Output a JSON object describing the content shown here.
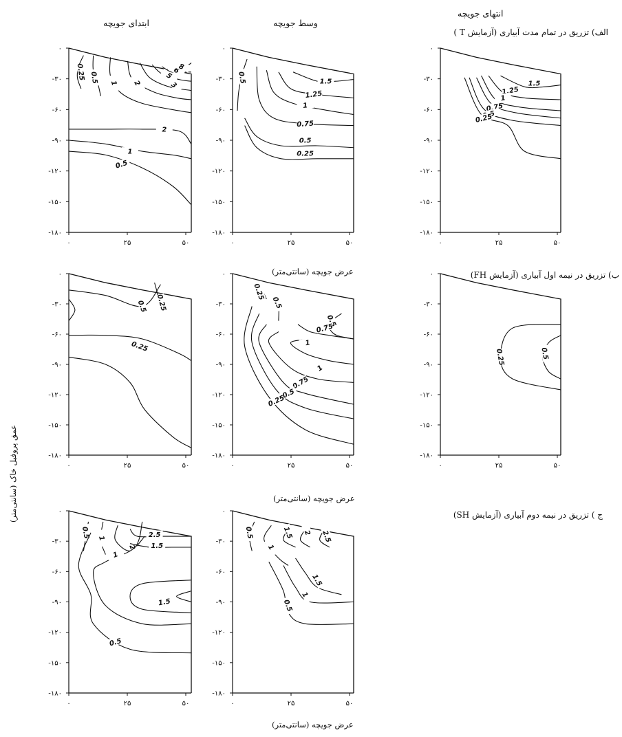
{
  "figure": {
    "column_titles": [
      "ابتدای جویچه",
      "وسط جویچه",
      "انتهای جویچه"
    ],
    "row_titles": [
      "الف) تزریق در تمام مدت آبیاری (آزمایش T )",
      "ب) تزریق در نیمه اول آبیاری (آزمایش FH)",
      "ج ) تزریق در نیمه دوم آبیاری (آزمایش SH)"
    ],
    "x_axis_label": "عرض جویچه (سانتی‌متر)",
    "y_axis_label": "عمق پروفیل خاک (سانتی‌متر)",
    "y_tick_labels": [
      "۰",
      "-۳۰",
      "-۶۰",
      "-۹۰",
      "-۱۲۰",
      "-۱۵۰",
      "-۱۸۰"
    ],
    "x_tick_labels": [
      "۰",
      "۲۵",
      "۵۰"
    ]
  },
  "chart_data": [
    {
      "type": "contour",
      "panel": "T-start",
      "x": [
        0,
        25,
        50
      ],
      "ylim": [
        -180,
        0
      ],
      "xlim": [
        0,
        50
      ],
      "contour_levels": [
        "0.25",
        "0.5",
        "1",
        "2",
        "3",
        "5",
        "6",
        "8",
        "2",
        "1",
        "0.5",
        "0.25"
      ]
    },
    {
      "type": "contour",
      "panel": "T-middle",
      "x": [
        0,
        25,
        50
      ],
      "ylim": [
        -180,
        0
      ],
      "xlim": [
        0,
        50
      ],
      "contour_levels": [
        "0.5",
        "1.5",
        "1.25",
        "1",
        "0.75",
        "0.5",
        "0.25"
      ]
    },
    {
      "type": "contour",
      "panel": "T-end",
      "x": [
        0,
        25,
        50
      ],
      "ylim": [
        -180,
        0
      ],
      "xlim": [
        0,
        50
      ],
      "contour_levels": [
        "1.5",
        "1.25",
        "1",
        "0.75",
        "0.5",
        "0.25"
      ]
    },
    {
      "type": "contour",
      "panel": "FH-start",
      "x": [
        0,
        25,
        50
      ],
      "ylim": [
        -180,
        0
      ],
      "xlim": [
        0,
        50
      ],
      "contour_levels": [
        "0.5",
        "0.25",
        "0.5",
        "0.25"
      ]
    },
    {
      "type": "contour",
      "panel": "FH-middle",
      "x": [
        0,
        25,
        50
      ],
      "ylim": [
        -180,
        0
      ],
      "xlim": [
        0,
        50
      ],
      "contour_levels": [
        "0.25",
        "0.5",
        "0.5",
        "0.75",
        "1",
        "1",
        "0.75",
        "0.5",
        "0.25"
      ]
    },
    {
      "type": "contour",
      "panel": "FH-end",
      "x": [
        0,
        25,
        50
      ],
      "ylim": [
        -180,
        0
      ],
      "xlim": [
        0,
        50
      ],
      "contour_levels": [
        "0.25",
        "0.5"
      ]
    },
    {
      "type": "contour",
      "panel": "SH-start",
      "x": [
        0,
        25,
        50
      ],
      "ylim": [
        -180,
        0
      ],
      "xlim": [
        0,
        50
      ],
      "contour_levels": [
        "0.5",
        "1",
        "2",
        "2.5",
        "1.5",
        "1",
        "1.5",
        "1",
        "0.5"
      ]
    },
    {
      "type": "contour",
      "panel": "SH-middle",
      "x": [
        0,
        25,
        50
      ],
      "ylim": [
        -180,
        0
      ],
      "xlim": [
        0,
        50
      ],
      "contour_levels": [
        "0.5",
        "1",
        "1.5",
        "2",
        "2.5",
        "1.5",
        "1",
        "0.5"
      ]
    }
  ]
}
